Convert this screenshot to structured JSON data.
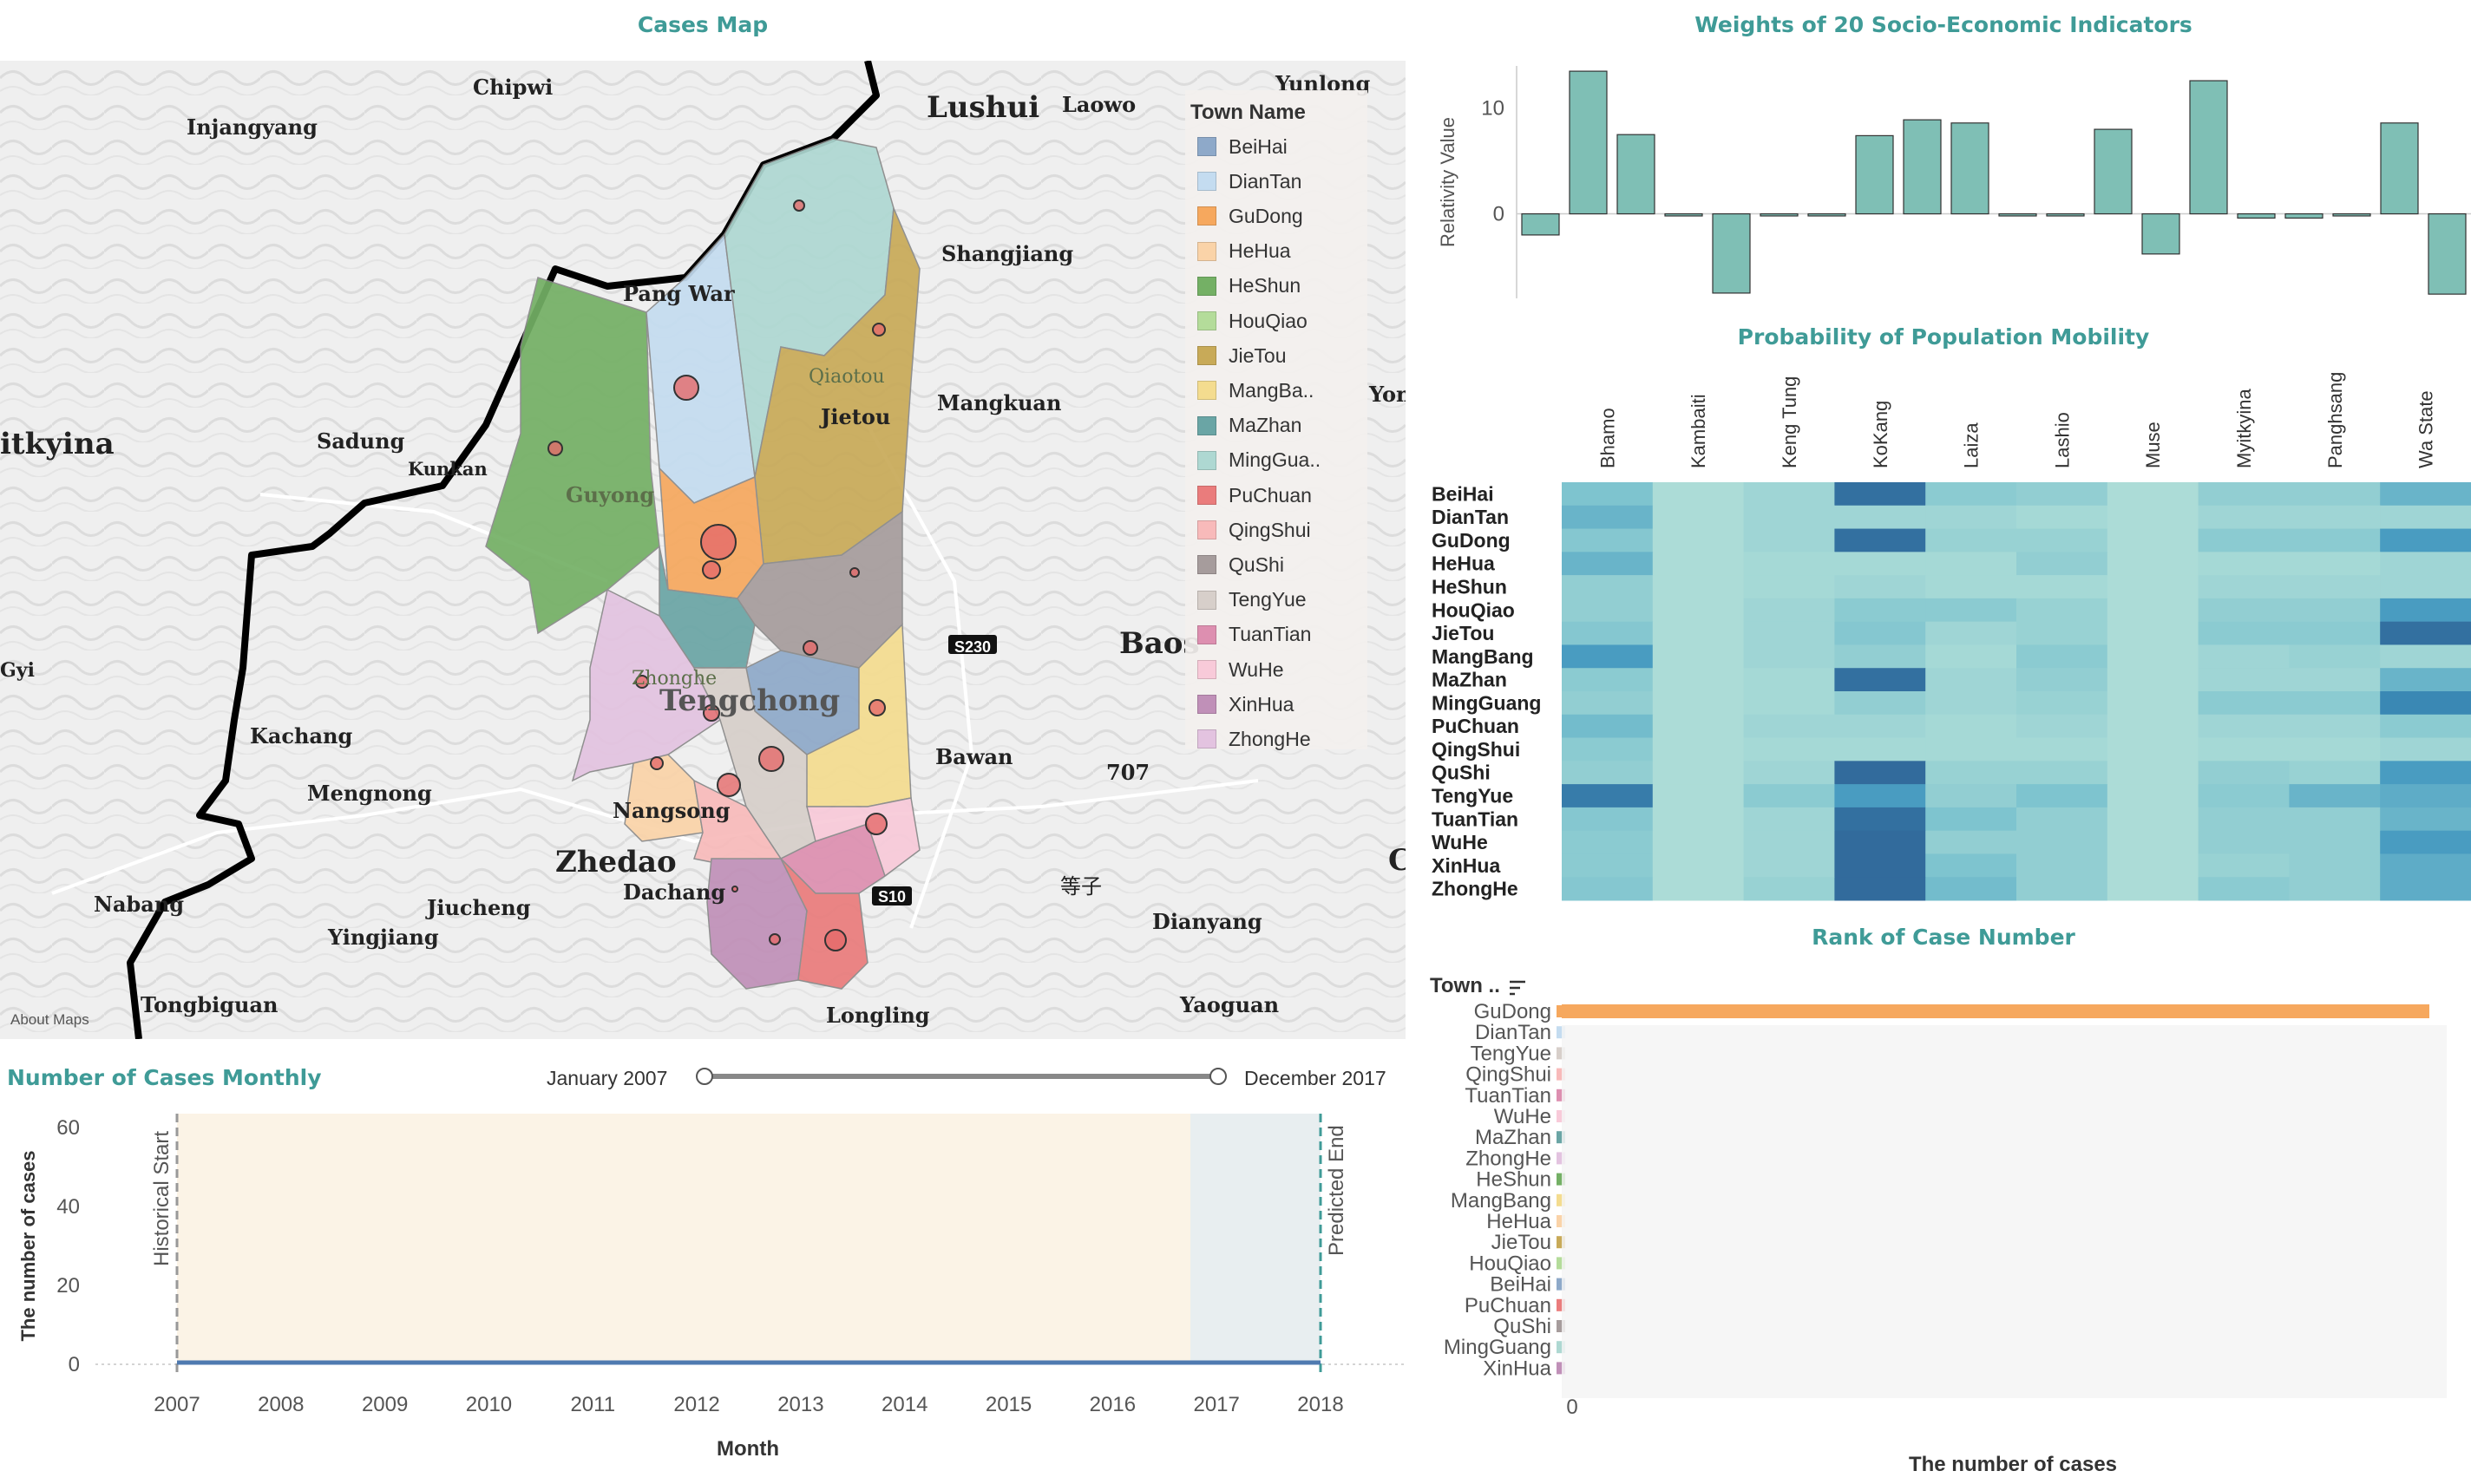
{
  "titles": {
    "cases_map": "Cases Map",
    "weights": "Weights of 20 Socio-Economic Indicators",
    "mobility": "Probability of Population Mobility",
    "rank": "Rank of Case Number",
    "monthly": "Number of Cases Monthly"
  },
  "colors": {
    "title_teal": "#3f9b97",
    "bar_teal": "#7fbfb5",
    "heat_low": "#b9e3d9",
    "heat_high": "#2d5d8f"
  },
  "map": {
    "legend_title": "Town Name",
    "attribution": "About Maps",
    "towns": [
      {
        "name": "BeiHai",
        "color": "#8ea9c9"
      },
      {
        "name": "DianTan",
        "color": "#c4dcf0"
      },
      {
        "name": "GuDong",
        "color": "#f6a85e"
      },
      {
        "name": "HeHua",
        "color": "#fad3a8"
      },
      {
        "name": "HeShun",
        "color": "#74b065"
      },
      {
        "name": "HouQiao",
        "color": "#b4dc9a"
      },
      {
        "name": "JieTou",
        "color": "#c8aa58"
      },
      {
        "name": "MangBa..",
        "color": "#f4dc8f"
      },
      {
        "name": "MaZhan",
        "color": "#6aa5a5"
      },
      {
        "name": "MingGua..",
        "color": "#aed8d2"
      },
      {
        "name": "PuChuan",
        "color": "#ea7c7c"
      },
      {
        "name": "QingShui",
        "color": "#f8baba"
      },
      {
        "name": "QuShi",
        "color": "#a69c9c"
      },
      {
        "name": "TengYue",
        "color": "#d7cfca"
      },
      {
        "name": "TuanTian",
        "color": "#dd8fb0"
      },
      {
        "name": "WuHe",
        "color": "#f8cad9"
      },
      {
        "name": "XinHua",
        "color": "#c090b8"
      },
      {
        "name": "ZhongHe",
        "color": "#e3c3e0"
      }
    ],
    "place_labels": [
      {
        "text": "Chipwi",
        "size": 24,
        "bold": true
      },
      {
        "text": "Yunlong",
        "size": 24,
        "bold": true
      },
      {
        "text": "Injangyang",
        "size": 24,
        "bold": true
      },
      {
        "text": "Lushui",
        "size": 34,
        "bold": true
      },
      {
        "text": "Laowo",
        "size": 24,
        "bold": true
      },
      {
        "text": "Shangjiang",
        "size": 24,
        "bold": true
      },
      {
        "text": "Pang War",
        "size": 24,
        "bold": true
      },
      {
        "text": "Qiaotou",
        "size": 22,
        "bold": false
      },
      {
        "text": "Jietou",
        "size": 24,
        "bold": true
      },
      {
        "text": "Mangkuan",
        "size": 24,
        "bold": true
      },
      {
        "text": "Yon",
        "size": 24,
        "bold": true
      },
      {
        "text": "itkyina",
        "size": 34,
        "bold": true
      },
      {
        "text": "Sadung",
        "size": 24,
        "bold": true
      },
      {
        "text": "Kunkan",
        "size": 21,
        "bold": true
      },
      {
        "text": "Guyong",
        "size": 24,
        "bold": true
      },
      {
        "text": "Baos",
        "size": 34,
        "bold": true
      },
      {
        "text": "S230",
        "size": 18,
        "bold": true
      },
      {
        "text": "Gyi",
        "size": 22,
        "bold": true
      },
      {
        "text": "Zhonghe",
        "size": 22,
        "bold": false
      },
      {
        "text": "Tengchong",
        "size": 34,
        "bold": true
      },
      {
        "text": "Kachang",
        "size": 24,
        "bold": true
      },
      {
        "text": "Bawan",
        "size": 24,
        "bold": true
      },
      {
        "text": "707",
        "size": 24,
        "bold": true
      },
      {
        "text": "Mengnong",
        "size": 24,
        "bold": true
      },
      {
        "text": "Nangsong",
        "size": 24,
        "bold": true
      },
      {
        "text": "Zhedao",
        "size": 34,
        "bold": true
      },
      {
        "text": "C",
        "size": 34,
        "bold": true
      },
      {
        "text": "S10",
        "size": 18,
        "bold": true
      },
      {
        "text": "Dachang",
        "size": 24,
        "bold": true
      },
      {
        "text": "等子",
        "size": 24,
        "bold": false
      },
      {
        "text": "Nabang",
        "size": 24,
        "bold": true
      },
      {
        "text": "Jiucheng",
        "size": 24,
        "bold": true
      },
      {
        "text": "Yingjiang",
        "size": 24,
        "bold": true
      },
      {
        "text": "Dianyang",
        "size": 24,
        "bold": true
      },
      {
        "text": "Tongbiguan",
        "size": 24,
        "bold": true
      },
      {
        "text": "Yaoguan",
        "size": 24,
        "bold": true
      },
      {
        "text": "Longling",
        "size": 24,
        "bold": true
      }
    ]
  },
  "weights_chart": {
    "ylabel": "Relativity Value",
    "yticks": [
      "10",
      "0"
    ],
    "values": [
      -2,
      13.5,
      7.5,
      -0.2,
      -7.5,
      -0.2,
      -0.2,
      7.4,
      8.9,
      8.6,
      -0.2,
      -0.2,
      8,
      -3.8,
      12.6,
      -0.4,
      -0.4,
      -0.2,
      8.6,
      -7.6
    ],
    "ylim": [
      -8,
      14
    ]
  },
  "mobility": {
    "columns": [
      "Bhamo",
      "Kambaiti",
      "Keng Tung",
      "KoKang",
      "Laiza",
      "Lashio",
      "Muse",
      "Myitkyina",
      "Panghsang",
      "Wa State"
    ],
    "rows": [
      "BeiHai",
      "DianTan",
      "GuDong",
      "HeHua",
      "HeShun",
      "HouQiao",
      "JieTou",
      "MangBang",
      "MaZhan",
      "MingGuang",
      "PuChuan",
      "QingShui",
      "QuShi",
      "TengYue",
      "TuanTian",
      "WuHe",
      "XinHua",
      "ZhongHe"
    ],
    "values": [
      [
        0.45,
        0.1,
        0.2,
        0.9,
        0.35,
        0.3,
        0.1,
        0.3,
        0.3,
        0.55
      ],
      [
        0.55,
        0.1,
        0.2,
        0.2,
        0.2,
        0.15,
        0.1,
        0.2,
        0.2,
        0.2
      ],
      [
        0.4,
        0.1,
        0.2,
        0.9,
        0.25,
        0.25,
        0.1,
        0.35,
        0.35,
        0.7
      ],
      [
        0.55,
        0.1,
        0.15,
        0.15,
        0.15,
        0.3,
        0.1,
        0.15,
        0.15,
        0.2
      ],
      [
        0.3,
        0.1,
        0.15,
        0.2,
        0.15,
        0.15,
        0.1,
        0.2,
        0.2,
        0.2
      ],
      [
        0.3,
        0.1,
        0.2,
        0.35,
        0.35,
        0.25,
        0.1,
        0.3,
        0.3,
        0.7
      ],
      [
        0.4,
        0.1,
        0.2,
        0.4,
        0.2,
        0.25,
        0.1,
        0.35,
        0.35,
        0.9
      ],
      [
        0.7,
        0.1,
        0.2,
        0.3,
        0.15,
        0.35,
        0.1,
        0.2,
        0.25,
        0.2
      ],
      [
        0.35,
        0.1,
        0.15,
        0.9,
        0.2,
        0.3,
        0.1,
        0.2,
        0.2,
        0.55
      ],
      [
        0.3,
        0.1,
        0.15,
        0.3,
        0.2,
        0.25,
        0.1,
        0.35,
        0.35,
        0.8
      ],
      [
        0.5,
        0.1,
        0.2,
        0.2,
        0.15,
        0.2,
        0.1,
        0.2,
        0.2,
        0.35
      ],
      [
        0.35,
        0.1,
        0.15,
        0.15,
        0.15,
        0.15,
        0.1,
        0.15,
        0.15,
        0.2
      ],
      [
        0.3,
        0.1,
        0.2,
        0.92,
        0.25,
        0.25,
        0.1,
        0.3,
        0.25,
        0.7
      ],
      [
        0.85,
        0.1,
        0.35,
        0.7,
        0.3,
        0.45,
        0.1,
        0.35,
        0.55,
        0.6
      ],
      [
        0.4,
        0.1,
        0.2,
        0.9,
        0.45,
        0.3,
        0.1,
        0.3,
        0.3,
        0.55
      ],
      [
        0.35,
        0.1,
        0.2,
        0.92,
        0.3,
        0.3,
        0.1,
        0.3,
        0.3,
        0.7
      ],
      [
        0.35,
        0.1,
        0.2,
        0.92,
        0.45,
        0.3,
        0.1,
        0.25,
        0.3,
        0.6
      ],
      [
        0.4,
        0.1,
        0.25,
        0.92,
        0.5,
        0.3,
        0.1,
        0.35,
        0.3,
        0.6
      ]
    ]
  },
  "rank": {
    "header": "Town ..",
    "xlabel": "The number of cases",
    "zero_tick": "0",
    "towns": [
      "GuDong",
      "DianTan",
      "TengYue",
      "QingShui",
      "TuanTian",
      "WuHe",
      "MaZhan",
      "ZhongHe",
      "HeShun",
      "MangBang",
      "HeHua",
      "JieTou",
      "HouQiao",
      "BeiHai",
      "PuChuan",
      "QuShi",
      "MingGuang",
      "XinHua"
    ],
    "swatches": [
      "#f6a85e",
      "#c4dcf0",
      "#d7cfca",
      "#f8baba",
      "#dd8fb0",
      "#f8cad9",
      "#6aa5a5",
      "#e3c3e0",
      "#74b065",
      "#f4dc8f",
      "#fad3a8",
      "#c8aa58",
      "#b4dc9a",
      "#8ea9c9",
      "#ea7c7c",
      "#a69c9c",
      "#aed8d2",
      "#c090b8"
    ]
  },
  "monthly": {
    "slider_start": "January 2007",
    "slider_end": "December 2017",
    "ylabel": "The number of cases",
    "xlabel": "Month",
    "yticks": [
      "60",
      "40",
      "20",
      "0"
    ],
    "xticks": [
      "2007",
      "2008",
      "2009",
      "2010",
      "2011",
      "2012",
      "2013",
      "2014",
      "2015",
      "2016",
      "2017",
      "2018"
    ],
    "historical_start": "Historical Start",
    "predicted_end": "Predicted End"
  }
}
